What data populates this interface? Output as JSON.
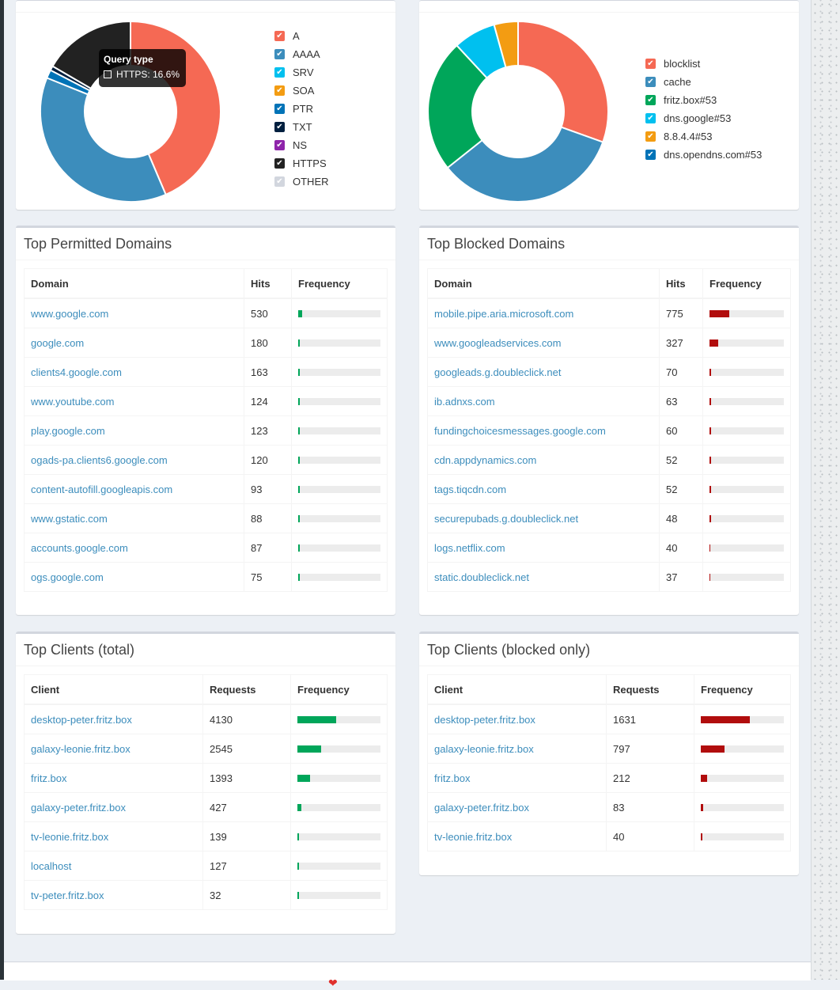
{
  "query_types_chart": {
    "tooltip": {
      "title": "Query type",
      "label": "HTTPS: 16.6%"
    },
    "chart_data": {
      "type": "pie",
      "categories": [
        "A",
        "AAAA",
        "SRV",
        "SOA",
        "PTR",
        "TXT",
        "NS",
        "HTTPS",
        "OTHER"
      ],
      "values": [
        43.6,
        37.5,
        0,
        0,
        1.5,
        0.8,
        0,
        16.6,
        0
      ]
    },
    "legend": [
      {
        "label": "A",
        "color": "#f56954"
      },
      {
        "label": "AAAA",
        "color": "#3c8dbc"
      },
      {
        "label": "SRV",
        "color": "#00c0ef"
      },
      {
        "label": "SOA",
        "color": "#f39c12"
      },
      {
        "label": "PTR",
        "color": "#0073b7"
      },
      {
        "label": "TXT",
        "color": "#001f3f"
      },
      {
        "label": "NS",
        "color": "#8e24aa"
      },
      {
        "label": "HTTPS",
        "color": "#222222"
      },
      {
        "label": "OTHER",
        "color": "#d2d6de"
      }
    ]
  },
  "upstreams_chart": {
    "chart_data": {
      "type": "pie",
      "categories": [
        "blocklist",
        "cache",
        "fritz.box#53",
        "dns.google#53",
        "8.8.4.4#53",
        "dns.opendns.com#53"
      ],
      "values": [
        30.5,
        33.8,
        23.8,
        7.6,
        4.3,
        0
      ]
    },
    "legend": [
      {
        "label": "blocklist",
        "color": "#f56954"
      },
      {
        "label": "cache",
        "color": "#3c8dbc"
      },
      {
        "label": "fritz.box#53",
        "color": "#00a65a"
      },
      {
        "label": "dns.google#53",
        "color": "#00c0ef"
      },
      {
        "label": "8.8.4.4#53",
        "color": "#f39c12"
      },
      {
        "label": "dns.opendns.com#53",
        "color": "#0073b7"
      }
    ]
  },
  "permitted": {
    "title": "Top Permitted Domains",
    "headers": [
      "Domain",
      "Hits",
      "Frequency"
    ],
    "bar_color": "#00a65a",
    "rows": [
      {
        "name": "www.google.com",
        "count": "530",
        "pct": 4.5
      },
      {
        "name": "google.com",
        "count": "180",
        "pct": 1.6
      },
      {
        "name": "clients4.google.com",
        "count": "163",
        "pct": 1.4
      },
      {
        "name": "www.youtube.com",
        "count": "124",
        "pct": 1.1
      },
      {
        "name": "play.google.com",
        "count": "123",
        "pct": 1.1
      },
      {
        "name": "ogads-pa.clients6.google.com",
        "count": "120",
        "pct": 1.0
      },
      {
        "name": "content-autofill.googleapis.com",
        "count": "93",
        "pct": 0.8
      },
      {
        "name": "www.gstatic.com",
        "count": "88",
        "pct": 0.8
      },
      {
        "name": "accounts.google.com",
        "count": "87",
        "pct": 0.8
      },
      {
        "name": "ogs.google.com",
        "count": "75",
        "pct": 0.7
      }
    ]
  },
  "blocked": {
    "title": "Top Blocked Domains",
    "headers": [
      "Domain",
      "Hits",
      "Frequency"
    ],
    "bar_color": "#b10d0d",
    "rows": [
      {
        "name": "mobile.pipe.aria.microsoft.com",
        "count": "775",
        "pct": 27
      },
      {
        "name": "www.googleadservices.com",
        "count": "327",
        "pct": 11.4
      },
      {
        "name": "googleads.g.doubleclick.net",
        "count": "70",
        "pct": 2.4
      },
      {
        "name": "ib.adnxs.com",
        "count": "63",
        "pct": 2.2
      },
      {
        "name": "fundingchoicesmessages.google.com",
        "count": "60",
        "pct": 2.1
      },
      {
        "name": "cdn.appdynamics.com",
        "count": "52",
        "pct": 1.8
      },
      {
        "name": "tags.tiqcdn.com",
        "count": "52",
        "pct": 1.8
      },
      {
        "name": "securepubads.g.doubleclick.net",
        "count": "48",
        "pct": 1.7
      },
      {
        "name": "logs.netflix.com",
        "count": "40",
        "pct": 1.4
      },
      {
        "name": "static.doubleclick.net",
        "count": "37",
        "pct": 1.3
      }
    ]
  },
  "clients_total": {
    "title": "Top Clients (total)",
    "headers": [
      "Client",
      "Requests",
      "Frequency"
    ],
    "bar_color": "#00a65a",
    "rows": [
      {
        "name": "desktop-peter.fritz.box",
        "count": "4130",
        "pct": 46.5
      },
      {
        "name": "galaxy-leonie.fritz.box",
        "count": "2545",
        "pct": 28.7
      },
      {
        "name": "fritz.box",
        "count": "1393",
        "pct": 15.7
      },
      {
        "name": "galaxy-peter.fritz.box",
        "count": "427",
        "pct": 4.8
      },
      {
        "name": "tv-leonie.fritz.box",
        "count": "139",
        "pct": 1.6
      },
      {
        "name": "localhost",
        "count": "127",
        "pct": 1.4
      },
      {
        "name": "tv-peter.fritz.box",
        "count": "32",
        "pct": 0.4
      }
    ]
  },
  "clients_blocked": {
    "title": "Top Clients (blocked only)",
    "headers": [
      "Client",
      "Requests",
      "Frequency"
    ],
    "bar_color": "#b10d0d",
    "rows": [
      {
        "name": "desktop-peter.fritz.box",
        "count": "1631",
        "pct": 59
      },
      {
        "name": "galaxy-leonie.fritz.box",
        "count": "797",
        "pct": 28.8
      },
      {
        "name": "fritz.box",
        "count": "212",
        "pct": 7.7
      },
      {
        "name": "galaxy-peter.fritz.box",
        "count": "83",
        "pct": 3.0
      },
      {
        "name": "tv-leonie.fritz.box",
        "count": "40",
        "pct": 1.4
      }
    ]
  }
}
